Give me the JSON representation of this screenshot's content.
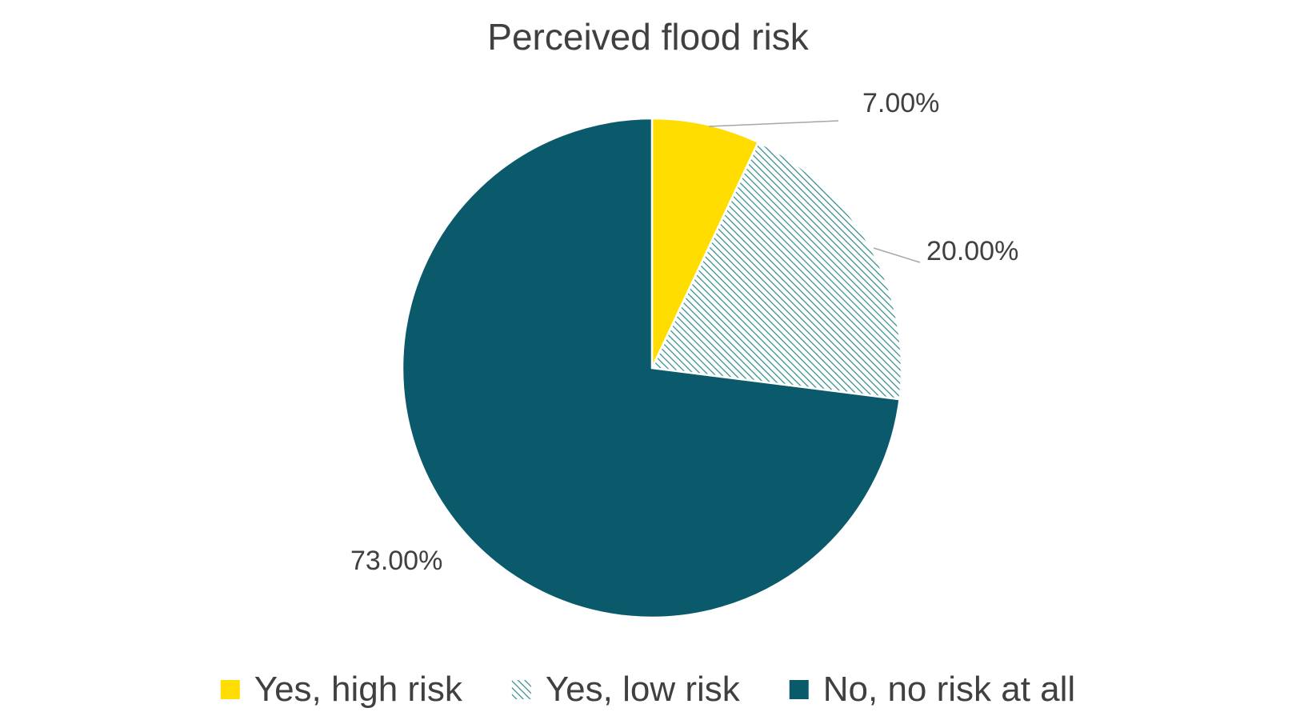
{
  "chart_data": {
    "type": "pie",
    "title": "Perceived flood risk",
    "slices": [
      {
        "name": "Yes, high risk",
        "value": 7.0,
        "label": "7.00%",
        "color": "#FFDD00",
        "pattern": "solid"
      },
      {
        "name": "Yes, low risk",
        "value": 20.0,
        "label": "20.00%",
        "color": "#2E8A8A",
        "pattern": "diagonal-hatch"
      },
      {
        "name": "No, no risk at all",
        "value": 73.0,
        "label": "73.00%",
        "color": "#0B5A6C",
        "pattern": "solid"
      }
    ],
    "legend_position": "bottom",
    "start_angle": "12 o'clock, clockwise"
  }
}
